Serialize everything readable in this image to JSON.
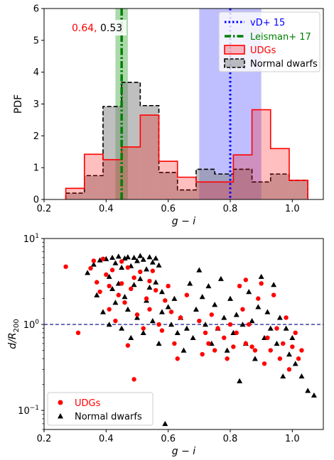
{
  "chart_data": [
    {
      "type": "bar",
      "xlabel": "g − i",
      "ylabel": "PDF",
      "xlim": [
        0.2,
        1.1
      ],
      "ylim": [
        0,
        6
      ],
      "xticks": [
        "0.2",
        "0.4",
        "0.6",
        "0.8",
        "1.0"
      ],
      "yticks": [
        "0",
        "1",
        "2",
        "3",
        "4",
        "5",
        "6"
      ],
      "legend_position": "top-right",
      "annotation": {
        "udg_value": "0.64,",
        "normal_value": "0.53"
      },
      "reference_bands": [
        {
          "x_range": [
            0.7,
            0.9
          ],
          "color": "#0000ff"
        },
        {
          "x_range": [
            0.43,
            0.47
          ],
          "color": "#2ca02c"
        }
      ],
      "reference_lines": [
        {
          "name": "vD+ 15",
          "x": 0.8,
          "style": "dotted",
          "color": "#0000ff"
        },
        {
          "name": "Leisman+ 17",
          "x": 0.45,
          "style": "dashdot",
          "color": "#008000"
        }
      ],
      "series": [
        {
          "name": "UDGs",
          "color": "#ff0000",
          "edges": [
            0.27,
            0.33,
            0.39,
            0.45,
            0.51,
            0.57,
            0.63,
            0.69,
            0.75,
            0.81,
            0.87,
            0.93,
            0.99,
            1.05
          ],
          "values": [
            0.35,
            1.42,
            1.25,
            1.65,
            2.65,
            1.2,
            0.7,
            0.55,
            0.55,
            1.4,
            2.82,
            1.6,
            0.6
          ]
        },
        {
          "name": "Normal dwarfs",
          "color": "#000000",
          "edges": [
            0.27,
            0.33,
            0.39,
            0.45,
            0.51,
            0.57,
            0.63,
            0.69,
            0.75,
            0.81,
            0.87,
            0.93,
            0.99,
            1.05
          ],
          "values": [
            0.2,
            0.75,
            2.92,
            3.68,
            2.95,
            0.85,
            0.3,
            0.95,
            0.8,
            0.95,
            0.55,
            0.8,
            0.6
          ]
        }
      ]
    },
    {
      "type": "scatter",
      "xlabel": "g − i",
      "ylabel": "d/R",
      "ylabel_sub": "200",
      "xlim": [
        0.2,
        1.1
      ],
      "ylim": [
        0.06,
        10
      ],
      "yscale": "log",
      "xticks": [
        "0.2",
        "0.4",
        "0.6",
        "0.8",
        "1.0"
      ],
      "yticks": [
        {
          "base": "10",
          "exp": "−1",
          "value": 0.1
        },
        {
          "base": "10",
          "exp": "0",
          "value": 1
        },
        {
          "base": "10",
          "exp": "1",
          "value": 10
        }
      ],
      "hline": {
        "y": 1.0,
        "style": "dashed",
        "color": "#00008b"
      },
      "legend_position": "bottom-left",
      "series": [
        {
          "name": "UDGs",
          "marker": "circle",
          "color": "#ff0000",
          "points": [
            [
              0.27,
              4.7
            ],
            [
              0.31,
              0.8
            ],
            [
              0.35,
              4.5
            ],
            [
              0.36,
              5.5
            ],
            [
              0.37,
              3.1
            ],
            [
              0.38,
              2.4
            ],
            [
              0.39,
              5.8
            ],
            [
              0.4,
              3.8
            ],
            [
              0.41,
              2.8
            ],
            [
              0.41,
              1.5
            ],
            [
              0.42,
              4.3
            ],
            [
              0.43,
              1.1
            ],
            [
              0.44,
              2.2
            ],
            [
              0.45,
              5.4
            ],
            [
              0.45,
              3.0
            ],
            [
              0.46,
              1.8
            ],
            [
              0.47,
              4.6
            ],
            [
              0.47,
              0.57
            ],
            [
              0.48,
              2.6
            ],
            [
              0.49,
              0.23
            ],
            [
              0.49,
              3.5
            ],
            [
              0.5,
              1.3
            ],
            [
              0.51,
              4.1
            ],
            [
              0.52,
              0.9
            ],
            [
              0.53,
              2.0
            ],
            [
              0.54,
              3.2
            ],
            [
              0.54,
              1.5
            ],
            [
              0.55,
              4.2
            ],
            [
              0.56,
              2.5
            ],
            [
              0.57,
              1.0
            ],
            [
              0.58,
              0.85
            ],
            [
              0.59,
              1.9
            ],
            [
              0.6,
              2.8
            ],
            [
              0.61,
              1.4
            ],
            [
              0.62,
              0.6
            ],
            [
              0.63,
              0.4
            ],
            [
              0.64,
              1.2
            ],
            [
              0.66,
              2.2
            ],
            [
              0.7,
              1.1
            ],
            [
              0.71,
              0.45
            ],
            [
              0.72,
              0.8
            ],
            [
              0.73,
              0.6
            ],
            [
              0.74,
              1.3
            ],
            [
              0.75,
              0.5
            ],
            [
              0.76,
              0.9
            ],
            [
              0.78,
              0.7
            ],
            [
              0.79,
              0.4
            ],
            [
              0.8,
              1.0
            ],
            [
              0.81,
              0.55
            ],
            [
              0.82,
              0.8
            ],
            [
              0.83,
              2.8
            ],
            [
              0.84,
              1.5
            ],
            [
              0.85,
              3.3
            ],
            [
              0.85,
              0.6
            ],
            [
              0.86,
              1.0
            ],
            [
              0.87,
              0.55
            ],
            [
              0.88,
              0.5
            ],
            [
              0.89,
              2.0
            ],
            [
              0.9,
              3.0
            ],
            [
              0.91,
              0.35
            ],
            [
              0.92,
              0.7
            ],
            [
              0.93,
              0.5
            ],
            [
              0.94,
              2.2
            ],
            [
              0.95,
              0.9
            ],
            [
              0.96,
              0.4
            ],
            [
              0.97,
              0.6
            ],
            [
              0.98,
              1.2
            ],
            [
              0.99,
              0.3
            ],
            [
              1.0,
              0.55
            ],
            [
              1.01,
              0.8
            ],
            [
              1.02,
              0.4
            ],
            [
              1.03,
              0.5
            ]
          ]
        },
        {
          "name": "Normal dwarfs",
          "marker": "triangle",
          "color": "#000000",
          "points": [
            [
              0.34,
              4.0
            ],
            [
              0.36,
              5.0
            ],
            [
              0.37,
              2.2
            ],
            [
              0.38,
              5.6
            ],
            [
              0.39,
              1.4
            ],
            [
              0.4,
              5.8
            ],
            [
              0.41,
              3.6
            ],
            [
              0.41,
              1.0
            ],
            [
              0.42,
              6.0
            ],
            [
              0.42,
              2.6
            ],
            [
              0.43,
              5.2
            ],
            [
              0.43,
              1.8
            ],
            [
              0.44,
              6.2
            ],
            [
              0.44,
              3.0
            ],
            [
              0.45,
              4.6
            ],
            [
              0.45,
              0.9
            ],
            [
              0.46,
              5.9
            ],
            [
              0.46,
              2.1
            ],
            [
              0.47,
              6.1
            ],
            [
              0.47,
              1.5
            ],
            [
              0.48,
              4.8
            ],
            [
              0.48,
              0.7
            ],
            [
              0.49,
              6.0
            ],
            [
              0.49,
              2.9
            ],
            [
              0.5,
              5.5
            ],
            [
              0.5,
              1.2
            ],
            [
              0.51,
              6.3
            ],
            [
              0.51,
              3.4
            ],
            [
              0.52,
              5.7
            ],
            [
              0.52,
              0.8
            ],
            [
              0.53,
              4.4
            ],
            [
              0.53,
              1.9
            ],
            [
              0.54,
              6.1
            ],
            [
              0.54,
              2.7
            ],
            [
              0.55,
              5.3
            ],
            [
              0.55,
              1.1
            ],
            [
              0.56,
              5.9
            ],
            [
              0.56,
              3.1
            ],
            [
              0.57,
              4.9
            ],
            [
              0.57,
              0.6
            ],
            [
              0.58,
              2.4
            ],
            [
              0.58,
              1.4
            ],
            [
              0.59,
              0.07
            ],
            [
              0.6,
              1.6
            ],
            [
              0.61,
              1.0
            ],
            [
              0.62,
              2.0
            ],
            [
              0.63,
              0.8
            ],
            [
              0.64,
              1.2
            ],
            [
              0.65,
              0.5
            ],
            [
              0.66,
              0.9
            ],
            [
              0.67,
              3.0
            ],
            [
              0.68,
              0.7
            ],
            [
              0.69,
              1.5
            ],
            [
              0.7,
              4.3
            ],
            [
              0.71,
              2.1
            ],
            [
              0.72,
              1.0
            ],
            [
              0.73,
              2.8
            ],
            [
              0.74,
              0.6
            ],
            [
              0.75,
              1.7
            ],
            [
              0.76,
              0.9
            ],
            [
              0.77,
              3.4
            ],
            [
              0.78,
              1.2
            ],
            [
              0.79,
              0.5
            ],
            [
              0.8,
              2.0
            ],
            [
              0.81,
              0.8
            ],
            [
              0.82,
              1.3
            ],
            [
              0.83,
              0.22
            ],
            [
              0.84,
              1.0
            ],
            [
              0.85,
              0.6
            ],
            [
              0.86,
              2.4
            ],
            [
              0.87,
              1.1
            ],
            [
              0.88,
              0.4
            ],
            [
              0.89,
              1.6
            ],
            [
              0.9,
              3.6
            ],
            [
              0.91,
              0.7
            ],
            [
              0.92,
              1.4
            ],
            [
              0.93,
              0.9
            ],
            [
              0.94,
              2.9
            ],
            [
              0.95,
              0.6
            ],
            [
              0.96,
              1.2
            ],
            [
              0.97,
              0.25
            ],
            [
              0.98,
              0.9
            ],
            [
              0.99,
              0.45
            ],
            [
              1.0,
              0.7
            ],
            [
              1.01,
              0.35
            ],
            [
              1.03,
              0.25
            ],
            [
              1.05,
              0.17
            ],
            [
              1.07,
              0.15
            ]
          ]
        }
      ]
    }
  ]
}
